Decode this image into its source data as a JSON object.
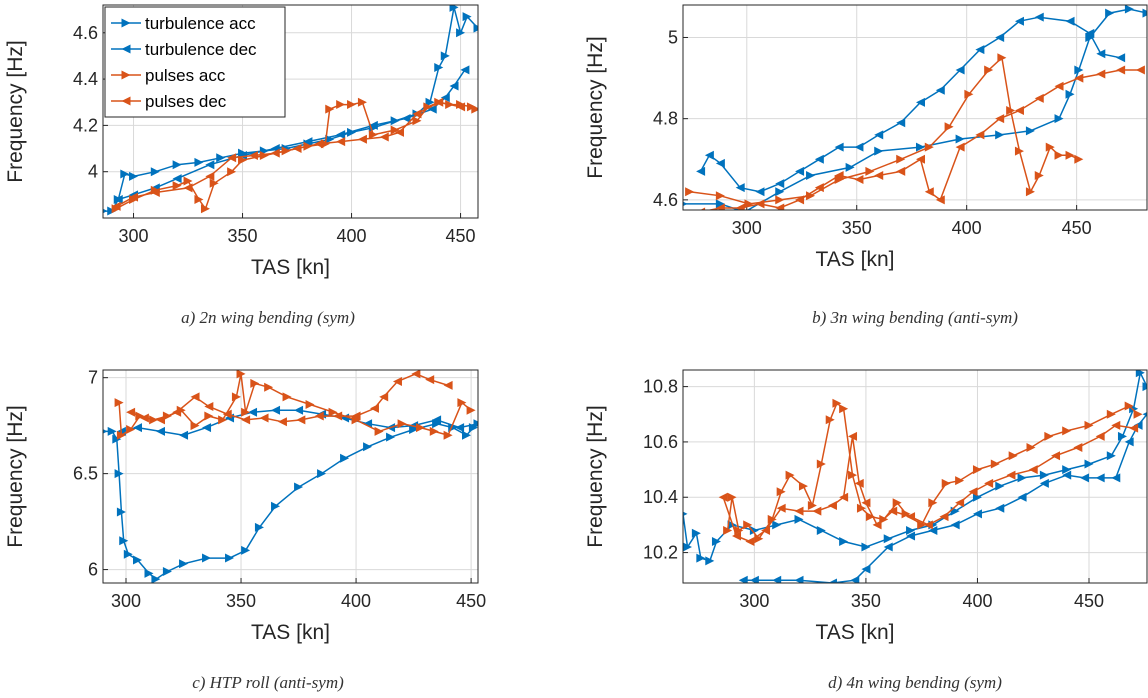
{
  "chart_data": [
    {
      "type": "line",
      "caption": "a) 2n wing bending (sym)",
      "xlabel": "TAS [kn]",
      "ylabel": "Frequency [Hz]",
      "xlim": [
        286,
        458
      ],
      "ylim": [
        3.8,
        4.72
      ],
      "xticks": [
        300,
        350,
        400,
        450
      ],
      "yticks": [
        4,
        4.2,
        4.4,
        4.6
      ],
      "grid": true,
      "legend": "upper left",
      "series": [
        {
          "name": "turbulence acc",
          "color": "#0072BD",
          "marker": ">",
          "x": [
            286,
            290,
            293,
            296,
            300,
            310,
            320,
            330,
            340,
            350,
            360,
            370,
            380,
            390,
            400,
            410,
            420,
            430,
            436,
            440,
            443,
            447,
            450,
            453,
            458
          ],
          "values": [
            3.83,
            3.83,
            3.88,
            3.99,
            3.98,
            4.0,
            4.03,
            4.04,
            4.06,
            4.08,
            4.09,
            4.1,
            4.12,
            4.14,
            4.17,
            4.19,
            4.22,
            4.25,
            4.3,
            4.45,
            4.5,
            4.71,
            4.6,
            4.67,
            4.62
          ]
        },
        {
          "name": "turbulence dec",
          "color": "#0072BD",
          "marker": "<",
          "x": [
            452,
            447,
            443,
            437,
            425,
            410,
            395,
            380,
            365,
            350,
            335,
            320,
            310,
            300,
            293
          ],
          "values": [
            4.44,
            4.37,
            4.32,
            4.27,
            4.23,
            4.2,
            4.16,
            4.13,
            4.1,
            4.07,
            4.03,
            3.97,
            3.93,
            3.9,
            3.88
          ]
        },
        {
          "name": "pulses acc",
          "color": "#D95319",
          "marker": ">",
          "x": [
            292,
            300,
            310,
            320,
            325,
            330,
            333,
            337,
            345,
            350,
            360,
            370,
            380,
            388,
            390,
            395,
            400,
            405,
            410,
            420,
            430,
            435,
            440,
            445,
            450,
            455,
            457
          ],
          "values": [
            3.84,
            3.88,
            3.92,
            3.94,
            3.96,
            3.88,
            3.84,
            3.95,
            4.0,
            4.05,
            4.07,
            4.09,
            4.11,
            4.12,
            4.27,
            4.29,
            4.29,
            4.3,
            4.16,
            4.18,
            4.22,
            4.28,
            4.3,
            4.29,
            4.29,
            4.28,
            4.27
          ]
        },
        {
          "name": "pulses dec",
          "color": "#D95319",
          "marker": "<",
          "x": [
            450,
            440,
            430,
            422,
            415,
            405,
            395,
            385,
            375,
            365,
            355,
            345,
            335,
            325,
            310,
            300,
            292
          ],
          "values": [
            4.28,
            4.3,
            4.25,
            4.17,
            4.15,
            4.14,
            4.13,
            4.12,
            4.1,
            4.08,
            4.07,
            4.06,
            3.98,
            3.93,
            3.91,
            3.89,
            3.85
          ]
        }
      ]
    },
    {
      "type": "line",
      "caption": "b) 3n wing bending (anti-sym)",
      "xlabel": "TAS [kn]",
      "ylabel": "Frequency [Hz]",
      "xlim": [
        271,
        482
      ],
      "ylim": [
        4.575,
        5.08
      ],
      "xticks": [
        300,
        350,
        400,
        450
      ],
      "yticks": [
        4.6,
        4.8,
        5
      ],
      "grid": true,
      "series": [
        {
          "color": "#0072BD",
          "marker": ">",
          "x": [
            271,
            288,
            299,
            315,
            329,
            347,
            360,
            379,
            397,
            415,
            429,
            442,
            447,
            451,
            456,
            465,
            474,
            482
          ],
          "values": [
            4.59,
            4.59,
            4.57,
            4.62,
            4.66,
            4.68,
            4.72,
            4.73,
            4.75,
            4.76,
            4.77,
            4.8,
            4.86,
            4.92,
            5.0,
            5.06,
            5.07,
            5.06
          ]
        },
        {
          "color": "#0072BD",
          "marker": "<",
          "x": [
            470,
            461,
            456,
            447,
            433,
            424,
            415,
            406,
            397,
            388,
            379,
            370,
            360,
            351,
            342,
            333,
            324,
            315,
            306,
            297,
            288,
            283,
            279
          ],
          "values": [
            4.95,
            4.96,
            5.01,
            5.04,
            5.05,
            5.04,
            5.0,
            4.97,
            4.92,
            4.87,
            4.84,
            4.79,
            4.76,
            4.73,
            4.73,
            4.7,
            4.67,
            4.64,
            4.62,
            4.63,
            4.69,
            4.71,
            4.67
          ]
        },
        {
          "color": "#D95319",
          "marker": ">",
          "x": [
            274,
            288,
            301,
            315,
            329,
            342,
            356,
            370,
            383,
            392,
            401,
            410,
            416,
            420,
            424,
            429,
            433,
            438,
            442,
            447,
            451
          ],
          "values": [
            4.62,
            4.61,
            4.59,
            4.6,
            4.61,
            4.65,
            4.67,
            4.7,
            4.73,
            4.78,
            4.86,
            4.92,
            4.95,
            4.82,
            4.72,
            4.62,
            4.66,
            4.73,
            4.71,
            4.71,
            4.7
          ]
        },
        {
          "color": "#D95319",
          "marker": "<",
          "x": [
            479,
            470,
            461,
            451,
            442,
            433,
            424,
            415,
            406,
            397,
            388,
            383,
            379,
            370,
            360,
            351,
            342,
            333,
            324,
            315,
            306,
            297,
            288,
            279
          ],
          "values": [
            4.92,
            4.92,
            4.91,
            4.9,
            4.88,
            4.85,
            4.82,
            4.8,
            4.76,
            4.73,
            4.6,
            4.62,
            4.7,
            4.67,
            4.66,
            4.65,
            4.66,
            4.63,
            4.6,
            4.58,
            4.59,
            4.58,
            4.58,
            4.57
          ]
        }
      ]
    },
    {
      "type": "line",
      "caption": "c) HTP roll (anti-sym)",
      "xlabel": "TAS [kn]",
      "ylabel": "Frequency [Hz]",
      "xlim": [
        290,
        453
      ],
      "ylim": [
        5.93,
        7.04
      ],
      "xticks": [
        300,
        350,
        400,
        450
      ],
      "yticks": [
        6,
        6.5,
        7
      ],
      "grid": true,
      "series": [
        {
          "color": "#0072BD",
          "marker": ">",
          "x": [
            290,
            294,
            296,
            297,
            298,
            299,
            301,
            305,
            310,
            313,
            318,
            325,
            335,
            345,
            352,
            358,
            365,
            375,
            385,
            395,
            405,
            415,
            425,
            435,
            442,
            448,
            451,
            453
          ],
          "values": [
            6.72,
            6.72,
            6.68,
            6.5,
            6.3,
            6.15,
            6.08,
            6.05,
            5.98,
            5.95,
            5.99,
            6.03,
            6.06,
            6.06,
            6.1,
            6.22,
            6.33,
            6.43,
            6.5,
            6.58,
            6.64,
            6.69,
            6.73,
            6.76,
            6.74,
            6.7,
            6.74,
            6.76
          ]
        },
        {
          "color": "#0072BD",
          "marker": "<",
          "x": [
            453,
            445,
            435,
            425,
            415,
            405,
            395,
            385,
            375,
            365,
            355,
            345,
            335,
            325,
            315,
            305,
            298
          ],
          "values": [
            6.76,
            6.74,
            6.78,
            6.75,
            6.74,
            6.76,
            6.79,
            6.81,
            6.83,
            6.83,
            6.82,
            6.79,
            6.74,
            6.7,
            6.72,
            6.74,
            6.72
          ]
        },
        {
          "color": "#D95319",
          "marker": ">",
          "x": [
            297,
            298,
            302,
            306,
            312,
            318,
            324,
            330,
            336,
            342,
            348,
            350,
            352,
            356,
            362,
            370,
            380,
            390,
            400,
            410,
            420,
            428,
            434,
            440,
            446,
            450
          ],
          "values": [
            6.87,
            6.7,
            6.73,
            6.8,
            6.78,
            6.8,
            6.83,
            6.75,
            6.8,
            6.78,
            6.9,
            7.02,
            6.82,
            6.97,
            6.95,
            6.9,
            6.86,
            6.82,
            6.78,
            6.72,
            6.76,
            6.74,
            6.72,
            6.7,
            6.87,
            6.83
          ]
        },
        {
          "color": "#D95319",
          "marker": "<",
          "x": [
            440,
            432,
            426,
            418,
            412,
            408,
            400,
            392,
            384,
            376,
            368,
            360,
            352,
            344,
            336,
            330,
            322,
            315,
            308,
            302
          ],
          "values": [
            6.96,
            6.99,
            7.02,
            6.98,
            6.9,
            6.84,
            6.8,
            6.8,
            6.8,
            6.78,
            6.77,
            6.79,
            6.78,
            6.81,
            6.85,
            6.9,
            6.82,
            6.78,
            6.79,
            6.82
          ]
        }
      ]
    },
    {
      "type": "line",
      "caption": "d) 4n wing bending (sym)",
      "xlabel": "TAS [kn]",
      "ylabel": "Frequency [Hz]",
      "xlim": [
        268,
        476
      ],
      "ylim": [
        10.09,
        10.86
      ],
      "xticks": [
        300,
        350,
        400,
        450
      ],
      "yticks": [
        10.2,
        10.4,
        10.6,
        10.8
      ],
      "grid": true,
      "series": [
        {
          "color": "#0072BD",
          "marker": ">",
          "x": [
            268,
            270,
            274,
            276,
            280,
            283,
            290,
            300,
            310,
            320,
            330,
            340,
            350,
            360,
            370,
            380,
            390,
            400,
            410,
            420,
            430,
            440,
            450,
            460,
            465,
            470,
            473,
            476
          ],
          "values": [
            10.34,
            10.22,
            10.27,
            10.18,
            10.17,
            10.24,
            10.3,
            10.28,
            10.3,
            10.32,
            10.28,
            10.24,
            10.22,
            10.25,
            10.28,
            10.3,
            10.35,
            10.4,
            10.44,
            10.47,
            10.48,
            10.5,
            10.52,
            10.55,
            10.62,
            10.72,
            10.85,
            10.8
          ]
        },
        {
          "color": "#0072BD",
          "marker": "<",
          "x": [
            476,
            472,
            468,
            462,
            455,
            448,
            440,
            430,
            420,
            410,
            400,
            390,
            380,
            370,
            360,
            350,
            345,
            335,
            320,
            310,
            300,
            295
          ],
          "values": [
            10.7,
            10.66,
            10.6,
            10.47,
            10.47,
            10.47,
            10.48,
            10.45,
            10.4,
            10.36,
            10.34,
            10.3,
            10.28,
            10.26,
            10.22,
            10.14,
            10.1,
            10.09,
            10.1,
            10.1,
            10.1,
            10.1
          ]
        },
        {
          "color": "#D95319",
          "marker": ">",
          "x": [
            288,
            290,
            293,
            297,
            302,
            308,
            312,
            316,
            322,
            326,
            330,
            334,
            337,
            340,
            344,
            348,
            352,
            358,
            364,
            368,
            375,
            380,
            386,
            392,
            400,
            408,
            416,
            424,
            432,
            440,
            450,
            460,
            468,
            472
          ],
          "values": [
            10.28,
            10.4,
            10.28,
            10.3,
            10.25,
            10.32,
            10.42,
            10.48,
            10.44,
            10.37,
            10.52,
            10.68,
            10.74,
            10.72,
            10.48,
            10.36,
            10.33,
            10.32,
            10.38,
            10.34,
            10.3,
            10.38,
            10.45,
            10.46,
            10.5,
            10.52,
            10.55,
            10.58,
            10.62,
            10.64,
            10.66,
            10.7,
            10.73,
            10.7
          ]
        },
        {
          "color": "#D95319",
          "marker": "<",
          "x": [
            470,
            462,
            455,
            445,
            435,
            425,
            415,
            405,
            398,
            392,
            385,
            378,
            370,
            362,
            355,
            350,
            347,
            344,
            340,
            335,
            328,
            320,
            312,
            305,
            298,
            292,
            286
          ],
          "values": [
            10.65,
            10.66,
            10.62,
            10.58,
            10.55,
            10.5,
            10.48,
            10.45,
            10.42,
            10.38,
            10.33,
            10.3,
            10.33,
            10.35,
            10.3,
            10.38,
            10.45,
            10.62,
            10.4,
            10.37,
            10.35,
            10.35,
            10.36,
            10.28,
            10.24,
            10.26,
            10.4
          ]
        }
      ]
    }
  ]
}
